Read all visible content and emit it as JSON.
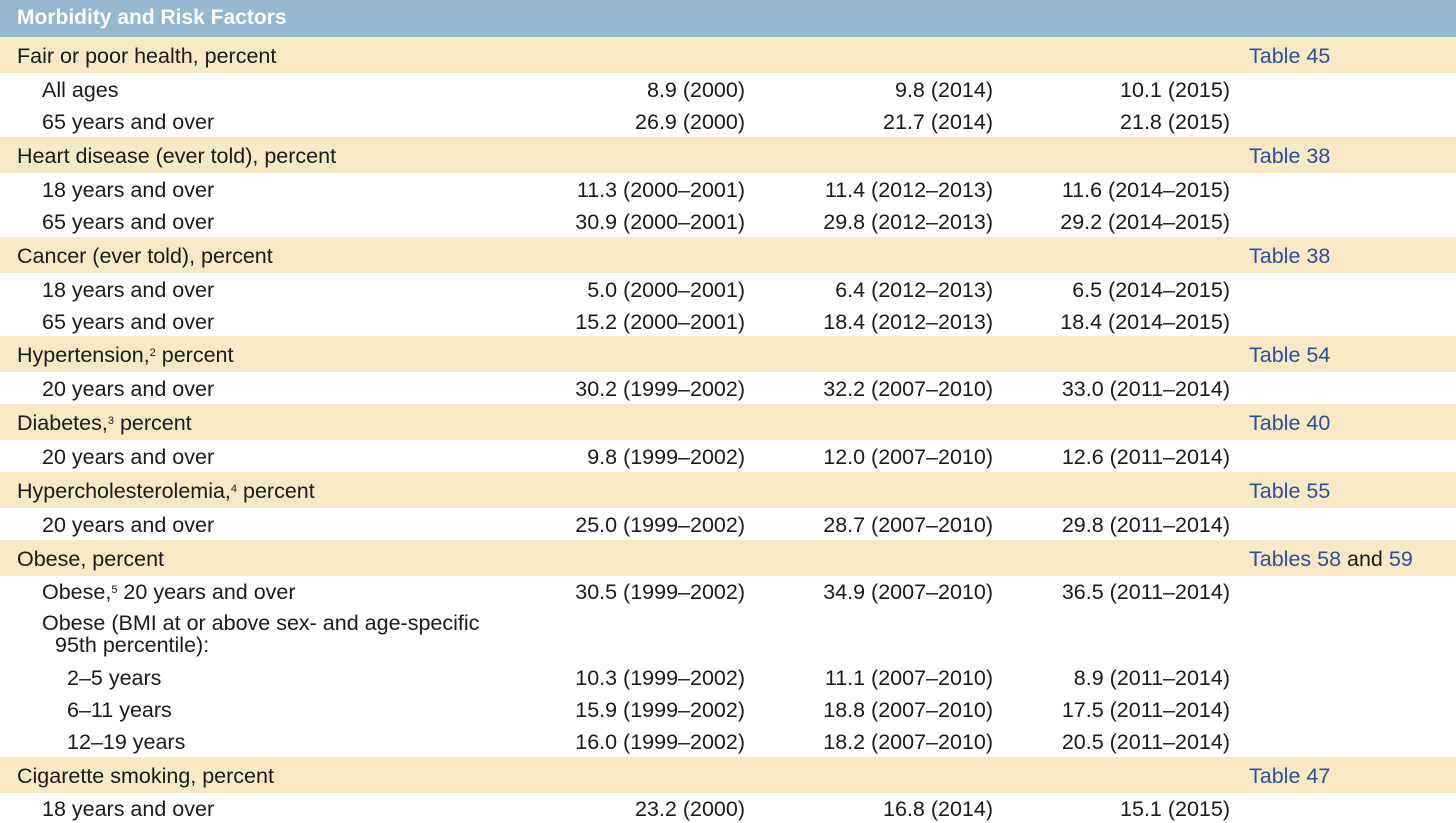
{
  "banner": {
    "title": "Morbidity and Risk Factors"
  },
  "sections": {
    "fair_poor_health": {
      "title": "Fair or poor health, percent",
      "ref_link": "Table 45",
      "rows": [
        {
          "label": "All ages",
          "v1": "8.9 (2000)",
          "v2": "9.8 (2014)",
          "v3": "10.1 (2015)"
        },
        {
          "label": "65 years and over",
          "v1": "26.9 (2000)",
          "v2": "21.7 (2014)",
          "v3": "21.8 (2015)"
        }
      ]
    },
    "heart_disease": {
      "title": "Heart disease (ever told), percent",
      "ref_link": "Table 38",
      "rows": [
        {
          "label": "18 years and over",
          "v1": "11.3 (2000–2001)",
          "v2": "11.4 (2012–2013)",
          "v3": "11.6 (2014–2015)"
        },
        {
          "label": "65 years and over",
          "v1": "30.9 (2000–2001)",
          "v2": "29.8 (2012–2013)",
          "v3": "29.2 (2014–2015)"
        }
      ]
    },
    "cancer": {
      "title": "Cancer (ever told), percent",
      "ref_link": "Table 38",
      "rows": [
        {
          "label": "18 years and over",
          "v1": "5.0 (2000–2001)",
          "v2": "6.4 (2012–2013)",
          "v3": "6.5 (2014–2015)"
        },
        {
          "label": "65 years and over",
          "v1": "15.2 (2000–2001)",
          "v2": "18.4 (2012–2013)",
          "v3": "18.4 (2014–2015)"
        }
      ]
    },
    "hypertension": {
      "title_pre": "Hypertension,",
      "footnote": "2",
      "title_post": " percent",
      "ref_link": "Table 54",
      "rows": [
        {
          "label": "20 years and over",
          "v1": "30.2 (1999–2002)",
          "v2": "32.2 (2007–2010)",
          "v3": "33.0 (2011–2014)"
        }
      ]
    },
    "diabetes": {
      "title_pre": "Diabetes,",
      "footnote": "3",
      "title_post": " percent",
      "ref_link": "Table 40",
      "rows": [
        {
          "label": "20 years and over",
          "v1": "9.8 (1999–2002)",
          "v2": "12.0 (2007–2010)",
          "v3": "12.6 (2011–2014)"
        }
      ]
    },
    "hypercholesterolemia": {
      "title_pre": "Hypercholesterolemia,",
      "footnote": "4",
      "title_post": " percent",
      "ref_link": "Table 55",
      "rows": [
        {
          "label": "20 years and over",
          "v1": "25.0 (1999–2002)",
          "v2": "28.7 (2007–2010)",
          "v3": "29.8 (2011–2014)"
        }
      ]
    },
    "obese": {
      "title": "Obese, percent",
      "ref_prefix": "Tables ",
      "ref_link1": "58",
      "ref_middle": " and ",
      "ref_link2": "59",
      "adult_row": {
        "label_pre": "Obese,",
        "footnote": "5",
        "label_post": " 20 years and over",
        "v1": "30.5 (1999–2002)",
        "v2": "34.9 (2007–2010)",
        "v3": "36.5 (2011–2014)"
      },
      "bmi_label_line1": "Obese (BMI at or above sex- and age-specific",
      "bmi_label_line2": "95th percentile):",
      "rows": [
        {
          "label": "2–5 years",
          "v1": "10.3 (1999–2002)",
          "v2": "11.1 (2007–2010)",
          "v3": "8.9 (2011–2014)"
        },
        {
          "label": "6–11 years",
          "v1": "15.9 (1999–2002)",
          "v2": "18.8 (2007–2010)",
          "v3": "17.5 (2011–2014)"
        },
        {
          "label": "12–19 years",
          "v1": "16.0 (1999–2002)",
          "v2": "18.2 (2007–2010)",
          "v3": "20.5 (2011–2014)"
        }
      ]
    },
    "smoking": {
      "title": "Cigarette smoking, percent",
      "ref_link": "Table 47",
      "rows": [
        {
          "label": "18 years and over",
          "v1": "23.2 (2000)",
          "v2": "16.8 (2014)",
          "v3": "15.1 (2015)"
        }
      ]
    }
  },
  "colors": {
    "banner_bg": "#94b8d2",
    "section_bg": "#f6e9c4",
    "link": "#2d4fa0"
  }
}
